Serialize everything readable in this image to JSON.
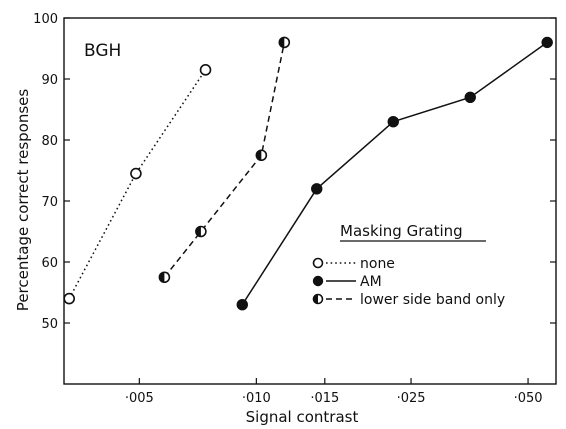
{
  "chart_data": {
    "type": "line",
    "panel_label": "BGH",
    "xlabel": "Signal contrast",
    "ylabel": "Percentage correct responses",
    "xscale": "log",
    "xlim": [
      0.0032,
      0.059
    ],
    "ylim": [
      40,
      100
    ],
    "grid": false,
    "x_ticks": [
      {
        "value": 0.005,
        "label": "·005"
      },
      {
        "value": 0.01,
        "label": "·010"
      },
      {
        "value": 0.015,
        "label": "·015"
      },
      {
        "value": 0.025,
        "label": "·025"
      },
      {
        "value": 0.05,
        "label": "·050"
      }
    ],
    "y_ticks": [
      {
        "value": 50,
        "label": "50"
      },
      {
        "value": 60,
        "label": "60"
      },
      {
        "value": 70,
        "label": "70"
      },
      {
        "value": 80,
        "label": "80"
      },
      {
        "value": 90,
        "label": "90"
      },
      {
        "value": 100,
        "label": "100"
      }
    ],
    "legend": {
      "title": "Masking Grating",
      "placement": "lower-right"
    },
    "series": [
      {
        "name": "none",
        "marker": "open-circle",
        "line": "dotted",
        "x": [
          0.0033,
          0.0049,
          0.0074
        ],
        "y": [
          54,
          74.5,
          91.5
        ]
      },
      {
        "name": "AM",
        "marker": "filled-circle",
        "line": "solid",
        "x": [
          0.0092,
          0.0143,
          0.0225,
          0.0355,
          0.056
        ],
        "y": [
          53,
          72,
          83,
          87,
          96
        ]
      },
      {
        "name": "lower side band only",
        "marker": "half-filled-circle",
        "line": "dashed",
        "x": [
          0.0058,
          0.0072,
          0.0103,
          0.0118
        ],
        "y": [
          57.5,
          65,
          77.5,
          96
        ]
      }
    ]
  }
}
